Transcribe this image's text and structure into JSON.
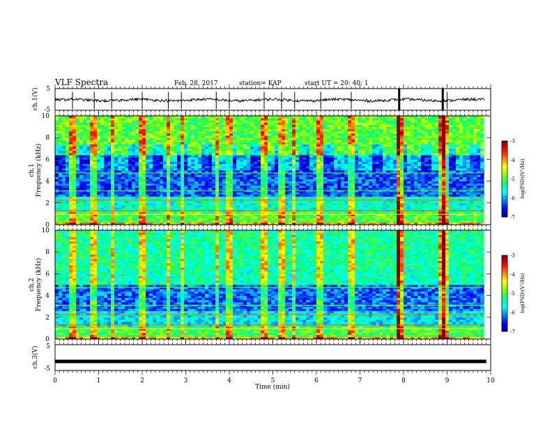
{
  "header": {
    "title": "VLF Spectra",
    "date": "Feb. 28, 2017",
    "station": "station= KAP",
    "start_time": "start  UT =   20: 40: 1"
  },
  "chart_data": [
    {
      "type": "line",
      "panel": "ch1-waveform",
      "ylabel": "ch.1(V)",
      "ylim": [
        -5,
        5
      ],
      "yticks": [
        "5",
        "-5"
      ],
      "xlim": [
        0,
        10
      ],
      "description_values": "noisy trace fluctuating around -0.3 V with brief spikes toward ±5 V near 0.4, 0.9, 1.3, 2.9, 3.7, 4.8, 5.2, 5.5, 6.1, 6.8, 7.9, 8.9, 9.0 min"
    },
    {
      "type": "heatmap",
      "panel": "ch1-spectrogram",
      "ylabel_top": "ch.1",
      "ylabel": "Frequency  (kHz)",
      "ylim": [
        0,
        10
      ],
      "yticks": [
        "0",
        "2",
        "4",
        "6",
        "8",
        "10"
      ],
      "xlim": [
        0,
        10
      ],
      "colorbar": {
        "label": "log(PSD)(V²/Hz)",
        "range": [
          -7,
          -3
        ],
        "ticks": [
          "-3",
          "-4",
          "-5",
          "-6",
          "-7"
        ]
      },
      "bright_vertical_events_min": [
        0.4,
        0.9,
        1.3,
        2.0,
        2.6,
        2.9,
        3.7,
        4.0,
        4.8,
        5.2,
        5.5,
        6.1,
        6.8,
        7.9,
        8.9,
        9.0
      ],
      "strong_events_min": [
        7.9,
        8.9
      ]
    },
    {
      "type": "heatmap",
      "panel": "ch2-spectrogram",
      "ylabel_top": "ch.2",
      "ylabel": "Frequency  (kHz)",
      "ylim": [
        0,
        10
      ],
      "yticks": [
        "0",
        "2",
        "4",
        "6",
        "8",
        "10"
      ],
      "xlim": [
        0,
        10
      ],
      "colorbar": {
        "label": "log(PSD)(V²/Hz)",
        "range": [
          -7,
          -3
        ],
        "ticks": [
          "-3",
          "-4",
          "-5",
          "-6",
          "-7"
        ]
      },
      "bright_vertical_events_min": [
        0.4,
        0.9,
        1.3,
        2.0,
        2.6,
        2.9,
        3.7,
        4.0,
        4.8,
        5.2,
        5.5,
        6.1,
        6.8,
        7.9,
        8.9,
        9.0
      ],
      "strong_events_min": [
        7.9,
        8.9
      ]
    },
    {
      "type": "line",
      "panel": "ch3-waveform",
      "ylabel": "ch.3(V)",
      "ylim": [
        -5,
        5
      ],
      "yticks": [
        "5",
        "-5"
      ],
      "series": [
        {
          "x": [
            0,
            9.9
          ],
          "y": [
            -1.5,
            -1.5
          ]
        }
      ],
      "xlabel": "Time  (min)",
      "xlim": [
        0,
        10
      ],
      "xticks": [
        "0",
        "1",
        "2",
        "3",
        "4",
        "5",
        "6",
        "7",
        "8",
        "9",
        "10"
      ]
    }
  ],
  "colors": {
    "axis": "#000000",
    "cmap": [
      "#000080",
      "#0000ff",
      "#0080ff",
      "#00ffff",
      "#00ff80",
      "#80ff00",
      "#ffff00",
      "#ff8000",
      "#ff0000",
      "#800000"
    ]
  }
}
